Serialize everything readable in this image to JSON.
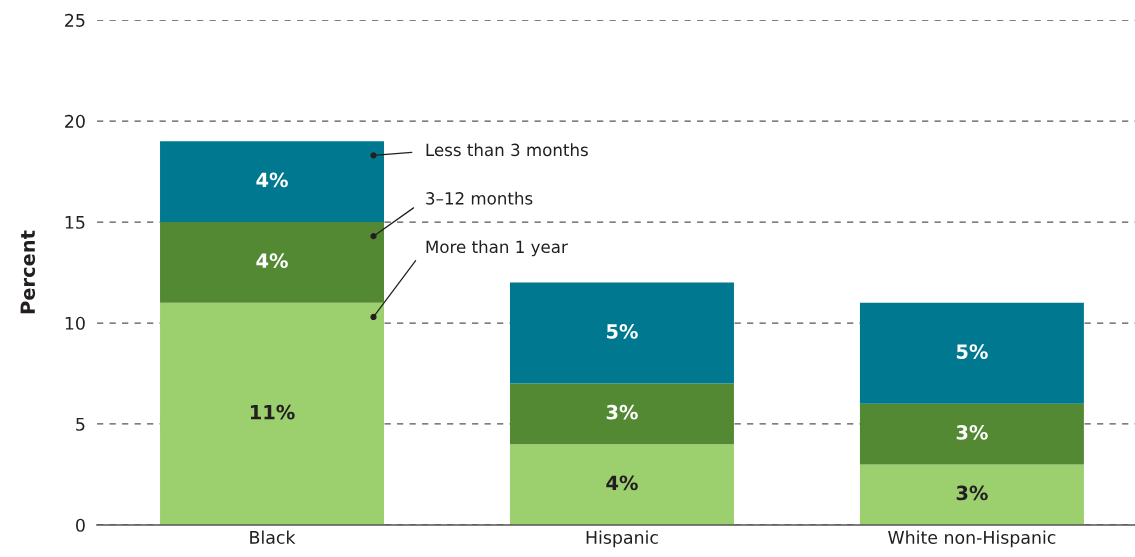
{
  "chart_data": {
    "type": "bar",
    "ylabel": "Percent",
    "categories": [
      "Black",
      "Hispanic",
      "White non-Hispanic"
    ],
    "stacked": true,
    "series": [
      {
        "name": "More than 1 year",
        "color": "#9ccf6e",
        "values": [
          11,
          4,
          3
        ],
        "value_labels": [
          "11%",
          "4%",
          "3%"
        ]
      },
      {
        "name": "3–12 months",
        "color": "#548934",
        "values": [
          4,
          3,
          3
        ],
        "value_labels": [
          "4%",
          "3%",
          "3%"
        ]
      },
      {
        "name": "Less than 3 months",
        "color": "#00788f",
        "values": [
          4,
          5,
          5
        ],
        "value_labels": [
          "4%",
          "5%",
          "5%"
        ]
      }
    ],
    "ylim": [
      0,
      25
    ],
    "yticks": [
      0,
      5,
      10,
      15,
      20,
      25
    ],
    "grid": "y"
  }
}
